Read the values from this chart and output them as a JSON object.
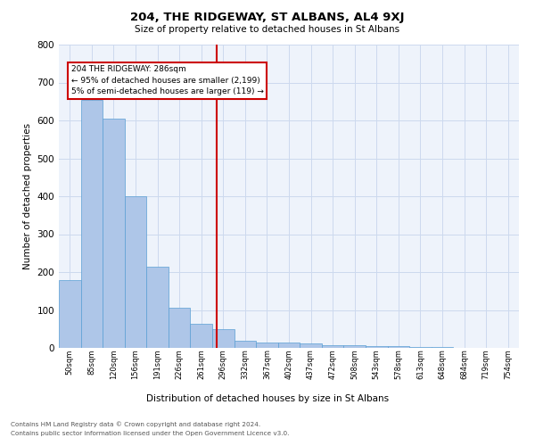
{
  "title": "204, THE RIDGEWAY, ST ALBANS, AL4 9XJ",
  "subtitle": "Size of property relative to detached houses in St Albans",
  "xlabel": "Distribution of detached houses by size in St Albans",
  "ylabel": "Number of detached properties",
  "bar_values": [
    180,
    655,
    605,
    400,
    215,
    107,
    63,
    49,
    20,
    15,
    14,
    12,
    7,
    6,
    5,
    4,
    3,
    2,
    1,
    1
  ],
  "bar_labels": [
    "50sqm",
    "85sqm",
    "120sqm",
    "156sqm",
    "191sqm",
    "226sqm",
    "261sqm",
    "296sqm",
    "332sqm",
    "367sqm",
    "402sqm",
    "437sqm",
    "472sqm",
    "508sqm",
    "543sqm",
    "578sqm",
    "613sqm",
    "648sqm",
    "684sqm",
    "719sqm",
    "754sqm"
  ],
  "bar_color": "#aec6e8",
  "bar_edge_color": "#5a9fd4",
  "grid_color": "#ccd9ee",
  "background_color": "#eef3fb",
  "vline_color": "#cc0000",
  "annotation_text": "204 THE RIDGEWAY: 286sqm\n← 95% of detached houses are smaller (2,199)\n5% of semi-detached houses are larger (119) →",
  "annotation_box_edgecolor": "#cc0000",
  "ylim": [
    0,
    800
  ],
  "yticks": [
    0,
    100,
    200,
    300,
    400,
    500,
    600,
    700,
    800
  ],
  "footer_line1": "Contains HM Land Registry data © Crown copyright and database right 2024.",
  "footer_line2": "Contains public sector information licensed under the Open Government Licence v3.0."
}
